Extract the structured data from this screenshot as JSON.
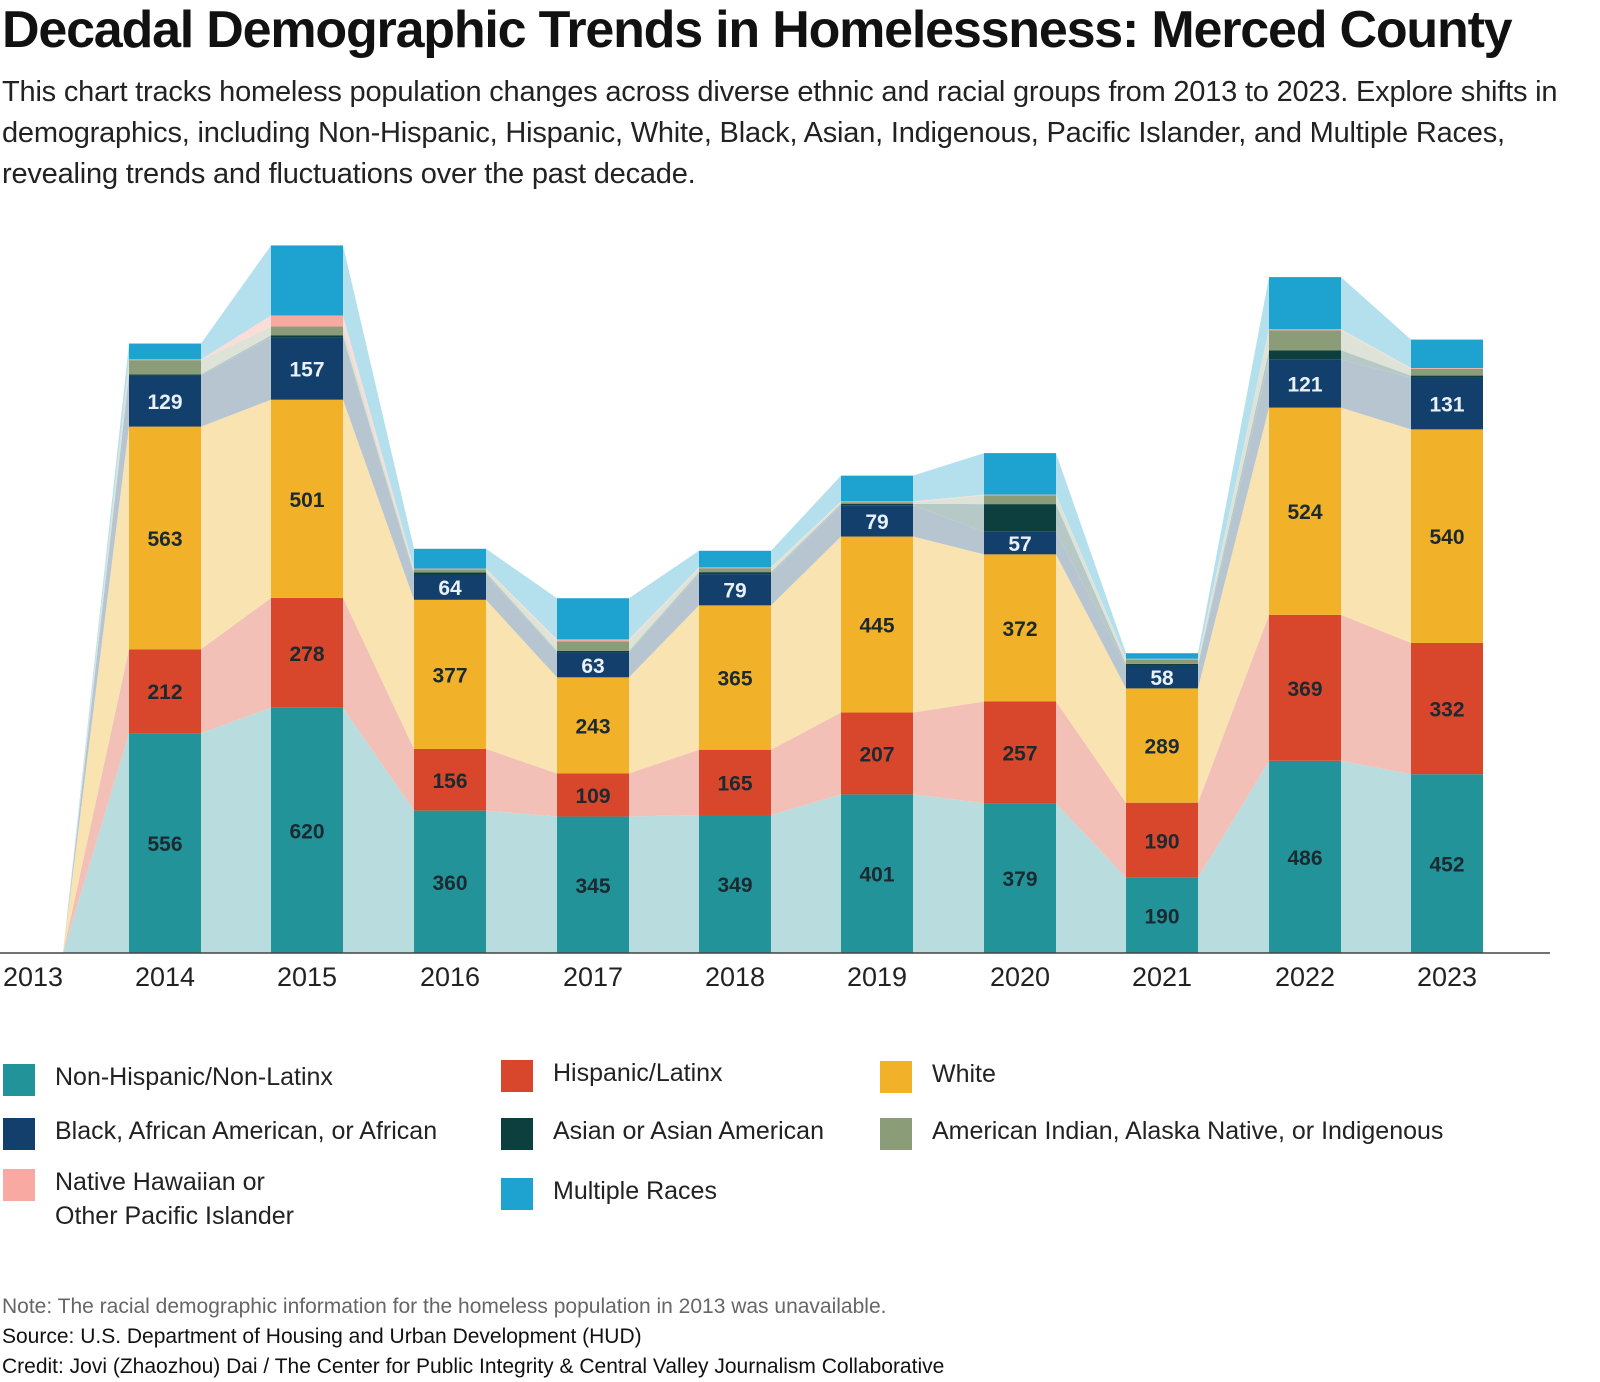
{
  "title": "Decadal Demographic Trends in Homelessness: Merced County",
  "subtitle": "This chart tracks homeless population changes across diverse ethnic and racial groups from 2013 to 2023. Explore shifts in demographics, including Non-Hispanic, Hispanic, White, Black, Asian, Indigenous, Pacific Islander, and Multiple Races, revealing trends and fluctuations over the past decade.",
  "chart_data": {
    "type": "bar",
    "stacked": true,
    "x": [
      "2013",
      "2014",
      "2015",
      "2016",
      "2017",
      "2018",
      "2019",
      "2020",
      "2021",
      "2022",
      "2023"
    ],
    "series": [
      {
        "name": "Non-Hispanic/Non-Latinx",
        "color": "#23939a",
        "light": "#b9dcde",
        "labelColor": "#1b2a30",
        "values": [
          null,
          556,
          620,
          360,
          345,
          349,
          401,
          379,
          190,
          486,
          452
        ]
      },
      {
        "name": "Hispanic/Latinx",
        "color": "#d8472b",
        "light": "#f2c0b7",
        "labelColor": "#1b2a30",
        "values": [
          null,
          212,
          278,
          156,
          109,
          165,
          207,
          257,
          190,
          369,
          332
        ]
      },
      {
        "name": "White",
        "color": "#f1b128",
        "light": "#f9e3b1",
        "labelColor": "#1b2a30",
        "values": [
          null,
          563,
          501,
          377,
          243,
          365,
          445,
          372,
          289,
          524,
          540
        ]
      },
      {
        "name": "Black, African American, or African",
        "color": "#123f6b",
        "light": "#b7c5d1",
        "labelColor": "#e9f0f6",
        "values": [
          null,
          129,
          157,
          64,
          63,
          79,
          79,
          57,
          58,
          121,
          131
        ]
      },
      {
        "name": "Asian or Asian American",
        "color": "#0e3f3f",
        "light": "#b6c9c7",
        "labelColor": "#ffffff",
        "values": [
          null,
          3,
          6,
          5,
          4,
          5,
          4,
          70,
          4,
          24,
          5
        ]
      },
      {
        "name": "American Indian, Alaska Native, or Indigenous",
        "color": "#8b9c78",
        "light": "#dde3d6",
        "labelColor": "#ffffff",
        "values": [
          null,
          36,
          22,
          8,
          24,
          10,
          4,
          22,
          11,
          50,
          17
        ]
      },
      {
        "name": "Native Hawaiian or Other Pacific Islander",
        "color": "#f7a9a2",
        "light": "#fcdcd8",
        "labelColor": "#1b2a30",
        "values": [
          null,
          2,
          28,
          2,
          5,
          2,
          2,
          2,
          2,
          3,
          2
        ]
      },
      {
        "name": "Multiple Races",
        "color": "#1ea3d1",
        "light": "#b4e0ee",
        "labelColor": "#1b2a30",
        "values": [
          null,
          40,
          177,
          50,
          104,
          42,
          65,
          105,
          14,
          132,
          72
        ]
      }
    ],
    "xlabel": "",
    "ylabel": "",
    "ylim": [
      0,
      1800
    ],
    "grid": false,
    "legend": "bottom"
  },
  "legend_items": [
    {
      "label": "Non-Hispanic/Non-Latinx",
      "color": "#23939a"
    },
    {
      "label": "Hispanic/Latinx",
      "color": "#d8472b"
    },
    {
      "label": "White",
      "color": "#f1b128"
    },
    {
      "label": "Black, African American, or African",
      "color": "#123f6b"
    },
    {
      "label": "Asian or Asian American",
      "color": "#0e3f3f"
    },
    {
      "label": "American Indian, Alaska Native, or Indigenous",
      "color": "#8b9c78"
    },
    {
      "label": "Native Hawaiian or\nOther Pacific Islander",
      "color": "#f7a9a2"
    },
    {
      "label": "Multiple Races",
      "color": "#1ea3d1"
    }
  ],
  "note": "Note: The racial demographic information for the homeless population in 2013 was unavailable.",
  "source": "Source: U.S. Department of Housing and Urban Development (HUD)",
  "credit": "Credit: Jovi (Zhaozhou) Dai / The Center for Public Integrity & Central Valley Journalism Collaborative"
}
